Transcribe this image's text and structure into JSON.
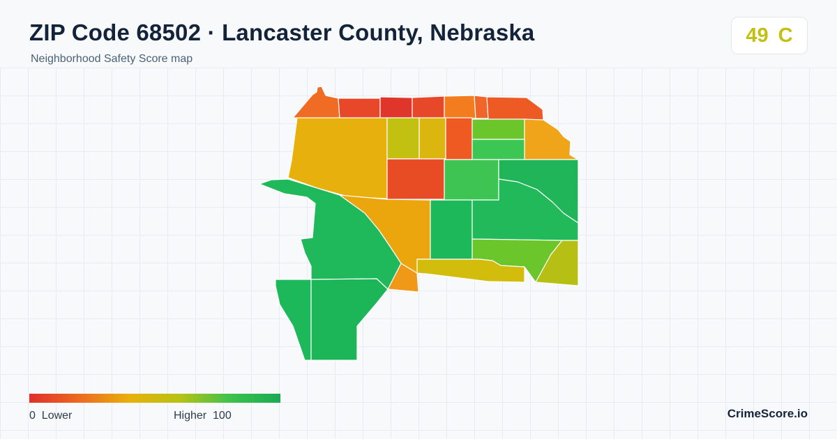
{
  "header": {
    "title": "ZIP Code 68502 · Lancaster County, Nebraska",
    "subtitle": "Neighborhood Safety Score map"
  },
  "score": {
    "value": "49",
    "grade": "C",
    "color": "#c2c010"
  },
  "legend": {
    "low_label": "0  Lower",
    "high_label": "Higher  100",
    "gradient": [
      "#e0302a",
      "#ec6a20",
      "#e8b00c",
      "#b6c214",
      "#3ec24c",
      "#1aaa55"
    ]
  },
  "brand": "CrimeScore.io",
  "map": {
    "areas": [
      {
        "name": "north-west-tip",
        "color": "#f06c24"
      },
      {
        "name": "north-strip-2",
        "color": "#e8472a"
      },
      {
        "name": "north-strip-3",
        "color": "#e0352a"
      },
      {
        "name": "north-strip-4",
        "color": "#e8482a"
      },
      {
        "name": "north-strip-5",
        "color": "#f27c1e"
      },
      {
        "name": "north-strip-6",
        "color": "#f0662a"
      },
      {
        "name": "north-strip-7",
        "color": "#ee5a24"
      },
      {
        "name": "west-yellow-block",
        "color": "#e8b00c"
      },
      {
        "name": "center-lime-block",
        "color": "#c2c010"
      },
      {
        "name": "center-yellow-block",
        "color": "#dbb60e"
      },
      {
        "name": "center-red-strip",
        "color": "#ee5a22"
      },
      {
        "name": "north-green-block",
        "color": "#6ac62a"
      },
      {
        "name": "east-orange-block",
        "color": "#f0a41a"
      },
      {
        "name": "center-green-block",
        "color": "#3cc653"
      },
      {
        "name": "center-red-block",
        "color": "#e84c24"
      },
      {
        "name": "mid-green-block",
        "color": "#3ec453"
      },
      {
        "name": "east-green-block",
        "color": "#1fb558"
      },
      {
        "name": "south-center-orange",
        "color": "#eba60e"
      },
      {
        "name": "south-center-green",
        "color": "#1db85a"
      },
      {
        "name": "east-south-green",
        "color": "#22b95a"
      },
      {
        "name": "southeast-lime",
        "color": "#6ac62a"
      },
      {
        "name": "south-yellow-strip",
        "color": "#d2bc0c"
      },
      {
        "name": "far-southeast-lime",
        "color": "#b6c014"
      },
      {
        "name": "south-orange-patch",
        "color": "#f09818"
      },
      {
        "name": "west-green-big",
        "color": "#1fb85a"
      },
      {
        "name": "southwest-green-left",
        "color": "#1db85a"
      },
      {
        "name": "southwest-green-right",
        "color": "#1cb659"
      }
    ]
  }
}
